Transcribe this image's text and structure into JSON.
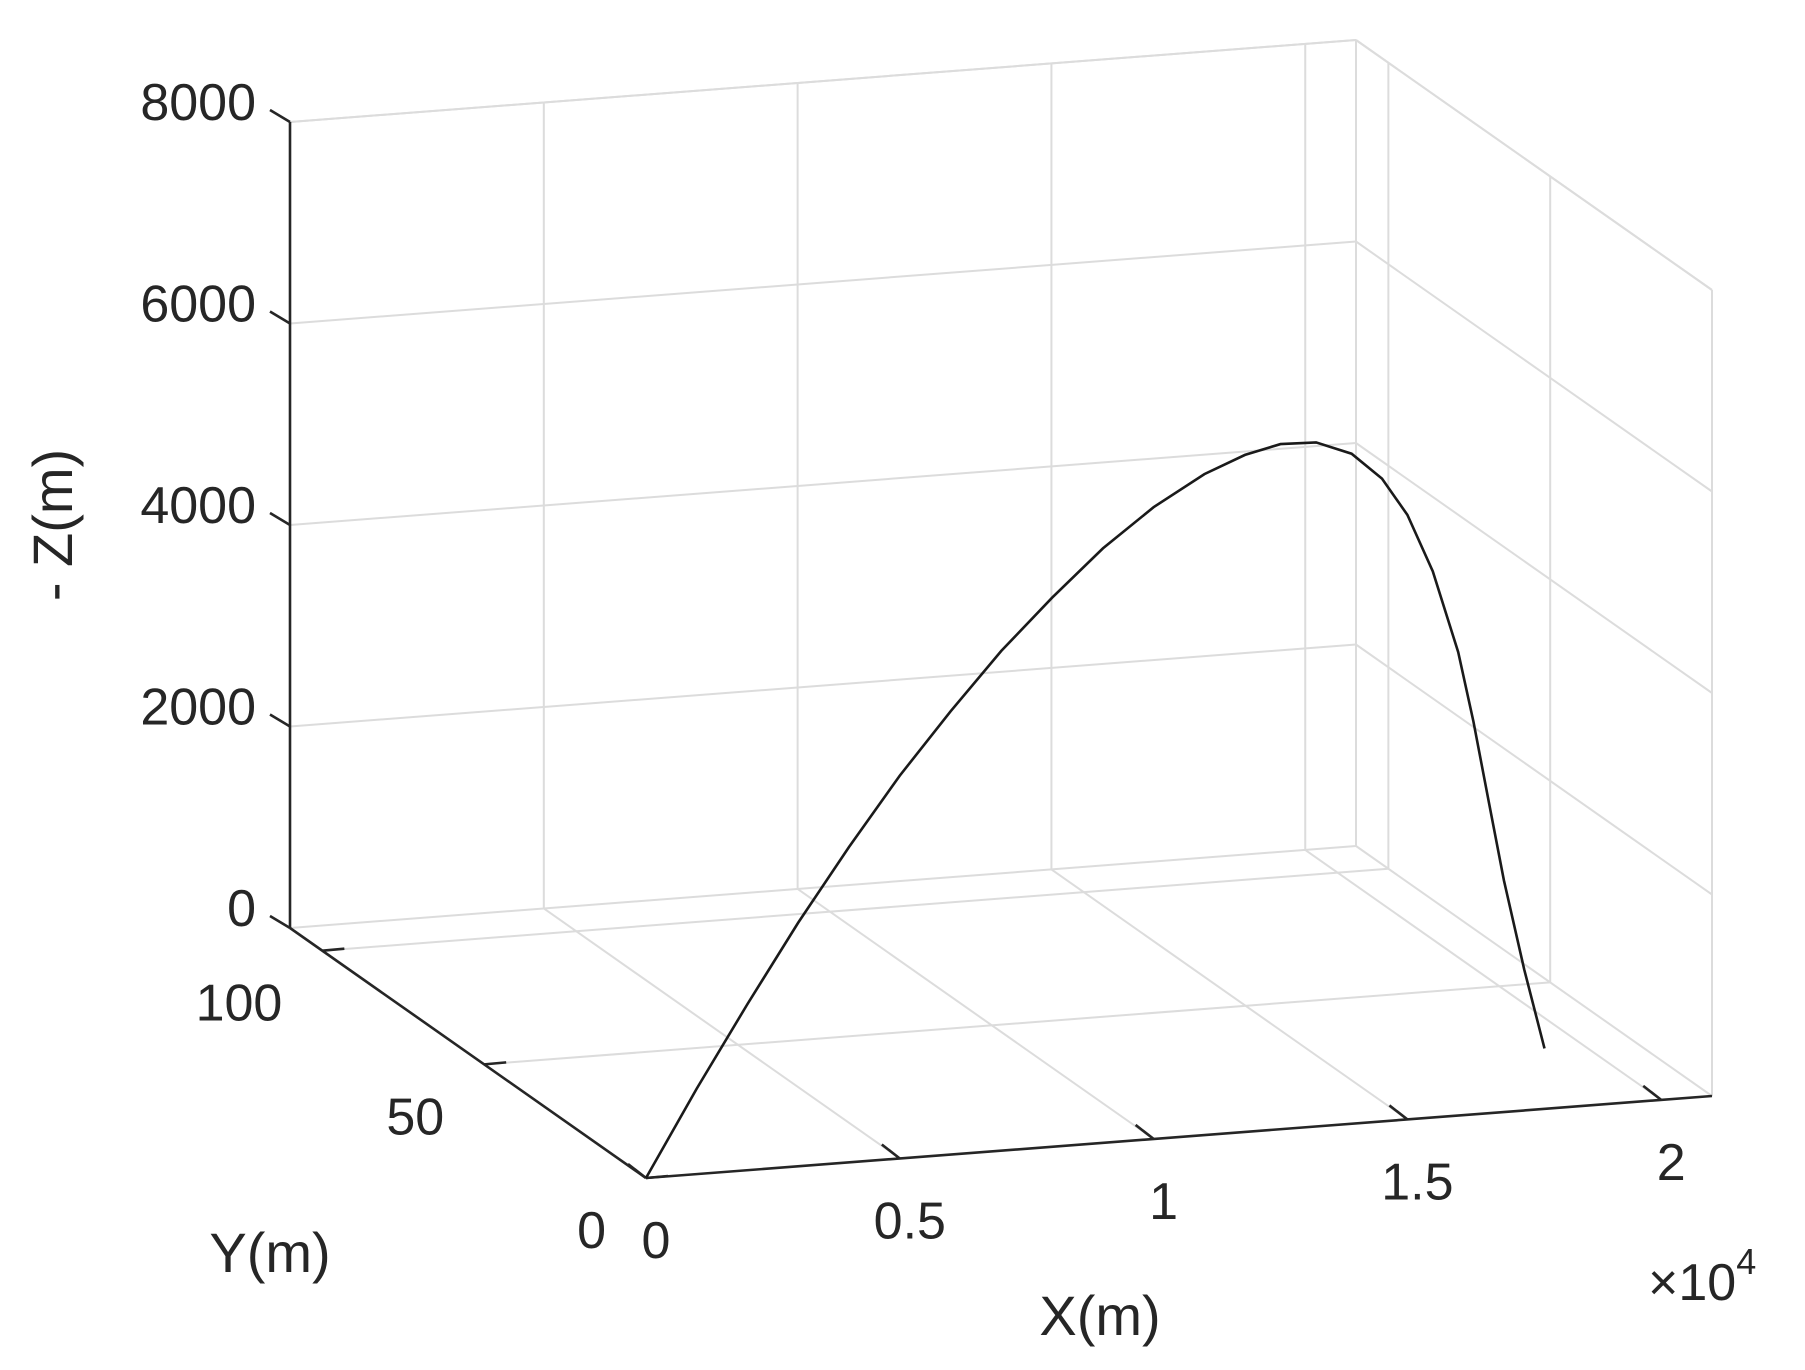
{
  "chart_data": {
    "type": "line",
    "projection": "3d",
    "xlabel": "X(m)",
    "ylabel": "Y(m)",
    "zlabel": "- Z(m)",
    "x_exponent_label": "×10",
    "x_exponent_power": "4",
    "xlim": [
      0,
      21000
    ],
    "ylim": [
      0,
      110
    ],
    "zlim": [
      0,
      8000
    ],
    "x_ticks": [
      0,
      5000,
      10000,
      15000,
      20000
    ],
    "x_tick_labels": [
      "0",
      "0.5",
      "1",
      "1.5",
      "2"
    ],
    "y_ticks": [
      0,
      50,
      100
    ],
    "y_tick_labels": [
      "0",
      "50",
      "100"
    ],
    "z_ticks": [
      0,
      2000,
      4000,
      6000,
      8000
    ],
    "z_tick_labels": [
      "0",
      "2000",
      "4000",
      "6000",
      "8000"
    ],
    "grid": true,
    "colors": {
      "line": "#1a1a1a",
      "axis": "#262626",
      "grid": "#dcdcdc"
    },
    "series": [
      {
        "x": [
          0,
          1000,
          2000,
          3000,
          4000,
          5000,
          6000,
          7000,
          8000,
          9000,
          10000,
          11000,
          11800,
          12500,
          13200,
          13900,
          14500,
          15000,
          15500,
          16000,
          16300,
          16600,
          16900,
          17300,
          17700
        ],
        "y": [
          0,
          0,
          0,
          0,
          0,
          0,
          0,
          0,
          0,
          0,
          0,
          0,
          0,
          0,
          0,
          0,
          0,
          0,
          0,
          0,
          0,
          0,
          0,
          0,
          0
        ],
        "z": [
          0,
          850,
          1650,
          2420,
          3130,
          3800,
          4400,
          4960,
          5450,
          5900,
          6270,
          6560,
          6720,
          6800,
          6790,
          6650,
          6380,
          6000,
          5420,
          4600,
          3900,
          3100,
          2300,
          1400,
          600
        ]
      }
    ]
  }
}
